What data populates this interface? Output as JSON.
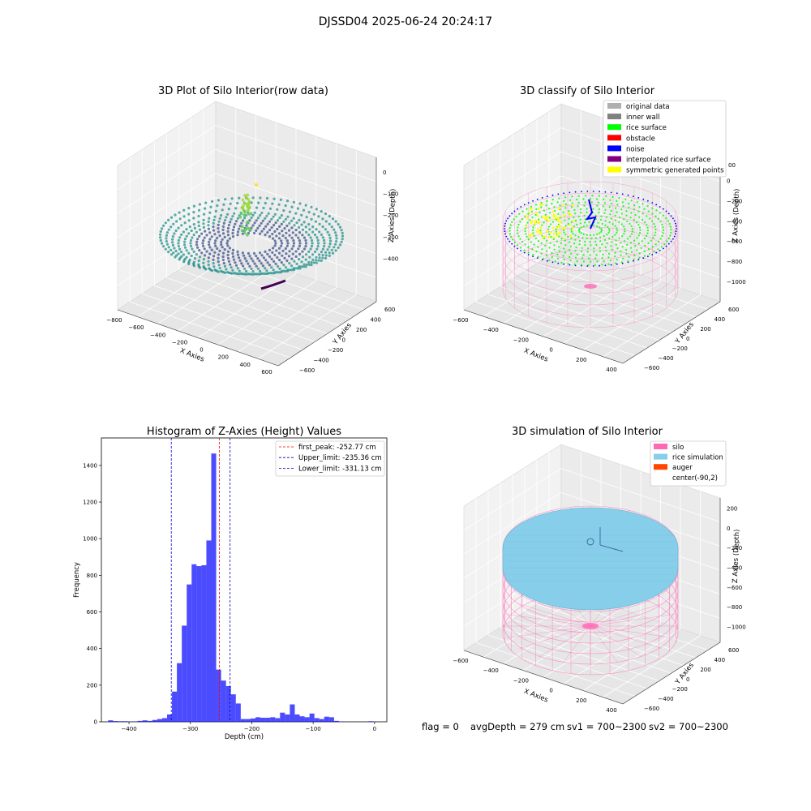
{
  "figure_title": "DJSSD04 2025-06-24 20:24:17",
  "footer": {
    "flag": "flag = 0",
    "avg_depth": "avgDepth = 279 cm",
    "sv1": "sv1 = 700~2300",
    "sv2": "sv2 = 700~2300"
  },
  "colors": {
    "histogram": "#0000ff",
    "first_peak": "#ff0000",
    "limit": "#0000cc",
    "silo": "#ff69b4",
    "rice": "#87ceeb",
    "auger": "#ff4500",
    "rice_surface": "#00ff00",
    "noise": "#0000ff",
    "symmetric": "#ffff00",
    "interpolated": "#800080"
  },
  "chart_data": [
    {
      "type": "scatter",
      "subtype": "3d",
      "title": "3D Plot of Silo Interior(row data)",
      "xlabel": "X Axies",
      "ylabel": "Y Axies",
      "zlabel": "Z Axies (Depth)",
      "x_ticks": [
        "−800",
        "−600",
        "−400",
        "−200",
        "0",
        "200",
        "400",
        "600"
      ],
      "y_ticks": [
        "600",
        "400",
        "200",
        "0",
        "−200",
        "−400",
        "−600"
      ],
      "z_ticks": [
        "0",
        "−100",
        "−200",
        "−300",
        "−400"
      ],
      "colormap": "viridis"
    },
    {
      "type": "scatter",
      "subtype": "3d",
      "title": "3D classify of Silo Interior",
      "xlabel": "X Axies",
      "ylabel": "Y Axies",
      "zlabel": "Z Axies (Depth)",
      "x_ticks": [
        "−600",
        "−400",
        "−200",
        "0",
        "200",
        "400"
      ],
      "y_ticks": [
        "600",
        "400",
        "200",
        "0",
        "−200",
        "−400",
        "−600"
      ],
      "z_ticks": [
        "0",
        "−200",
        "−400",
        "−600",
        "−800",
        "−1000"
      ],
      "z_partial_tick": "00",
      "legend": {
        "position": "top-right",
        "items": [
          {
            "label": "original data",
            "color": "#b0b0b0"
          },
          {
            "label": "inner wall",
            "color": "#808080"
          },
          {
            "label": "rice surface",
            "color": "#00ff00"
          },
          {
            "label": "obstacle",
            "color": "#ff0000"
          },
          {
            "label": "noise",
            "color": "#0000ff"
          },
          {
            "label": "interpolated rice surface",
            "color": "#800080"
          },
          {
            "label": "symmetric generated points",
            "color": "#ffff00"
          }
        ]
      }
    },
    {
      "type": "bar",
      "subtype": "histogram",
      "title": "Histogram of Z-Axies (Height) Values",
      "xlabel": "Depth (cm)",
      "ylabel": "Frequency",
      "xlim": [
        -445,
        20
      ],
      "ylim": [
        0,
        1550
      ],
      "x_ticks": [
        -400,
        -300,
        -200,
        -100,
        0
      ],
      "x_tick_labels": [
        "−400",
        "−300",
        "−200",
        "−100",
        "0"
      ],
      "y_ticks": [
        0,
        200,
        400,
        600,
        800,
        1000,
        1200,
        1400
      ],
      "bin_width": 8,
      "bins": [
        {
          "x": -430,
          "count": 8
        },
        {
          "x": -422,
          "count": 4
        },
        {
          "x": -414,
          "count": 3
        },
        {
          "x": -406,
          "count": 3
        },
        {
          "x": -398,
          "count": 2
        },
        {
          "x": -390,
          "count": 2
        },
        {
          "x": -382,
          "count": 5
        },
        {
          "x": -374,
          "count": 8
        },
        {
          "x": -366,
          "count": 5
        },
        {
          "x": -358,
          "count": 10
        },
        {
          "x": -350,
          "count": 15
        },
        {
          "x": -342,
          "count": 20
        },
        {
          "x": -334,
          "count": 40
        },
        {
          "x": -326,
          "count": 165
        },
        {
          "x": -318,
          "count": 320
        },
        {
          "x": -310,
          "count": 525
        },
        {
          "x": -302,
          "count": 750
        },
        {
          "x": -294,
          "count": 860
        },
        {
          "x": -286,
          "count": 850
        },
        {
          "x": -278,
          "count": 855
        },
        {
          "x": -270,
          "count": 990
        },
        {
          "x": -262,
          "count": 1465
        },
        {
          "x": -254,
          "count": 285
        },
        {
          "x": -246,
          "count": 225
        },
        {
          "x": -238,
          "count": 195
        },
        {
          "x": -230,
          "count": 150
        },
        {
          "x": -222,
          "count": 100
        },
        {
          "x": -214,
          "count": 15
        },
        {
          "x": -206,
          "count": 15
        },
        {
          "x": -198,
          "count": 18
        },
        {
          "x": -190,
          "count": 25
        },
        {
          "x": -182,
          "count": 22
        },
        {
          "x": -174,
          "count": 22
        },
        {
          "x": -166,
          "count": 25
        },
        {
          "x": -158,
          "count": 20
        },
        {
          "x": -150,
          "count": 50
        },
        {
          "x": -142,
          "count": 40
        },
        {
          "x": -134,
          "count": 95
        },
        {
          "x": -126,
          "count": 40
        },
        {
          "x": -118,
          "count": 30
        },
        {
          "x": -110,
          "count": 25
        },
        {
          "x": -102,
          "count": 45
        },
        {
          "x": -94,
          "count": 20
        },
        {
          "x": -86,
          "count": 15
        },
        {
          "x": -78,
          "count": 28
        },
        {
          "x": -70,
          "count": 25
        },
        {
          "x": -62,
          "count": 5
        },
        {
          "x": -54,
          "count": 2
        },
        {
          "x": -6,
          "count": 3
        }
      ],
      "lines": [
        {
          "label": "first_peak: -252.77 cm",
          "x": -252.77,
          "color": "#ff0000"
        },
        {
          "label": "Upper_limit: -235.36 cm",
          "x": -235.36,
          "color": "#0000cc"
        },
        {
          "label": "Lower_limit: -331.13 cm",
          "x": -331.13,
          "color": "#0000cc"
        }
      ],
      "legend_position": "top-right"
    },
    {
      "type": "scatter",
      "subtype": "3d",
      "title": "3D simulation of Silo Interior",
      "xlabel": "X Axies",
      "ylabel": "Y Axies",
      "zlabel": "Z Axies (Depth)",
      "x_ticks": [
        "−600",
        "−400",
        "−200",
        "0",
        "200",
        "400"
      ],
      "y_ticks": [
        "600",
        "400",
        "200",
        "0",
        "−200",
        "−400",
        "−600"
      ],
      "z_ticks": [
        "200",
        "0",
        "−200",
        "−400",
        "−600",
        "−800",
        "−1000"
      ],
      "legend": {
        "position": "top-right",
        "items": [
          {
            "label": "silo",
            "color": "#ff69b4"
          },
          {
            "label": "rice simulation",
            "color": "#87ceeb"
          },
          {
            "label": "auger",
            "color": "#ff4500"
          },
          {
            "label": "center(-90,2)",
            "color": ""
          }
        ]
      }
    }
  ]
}
